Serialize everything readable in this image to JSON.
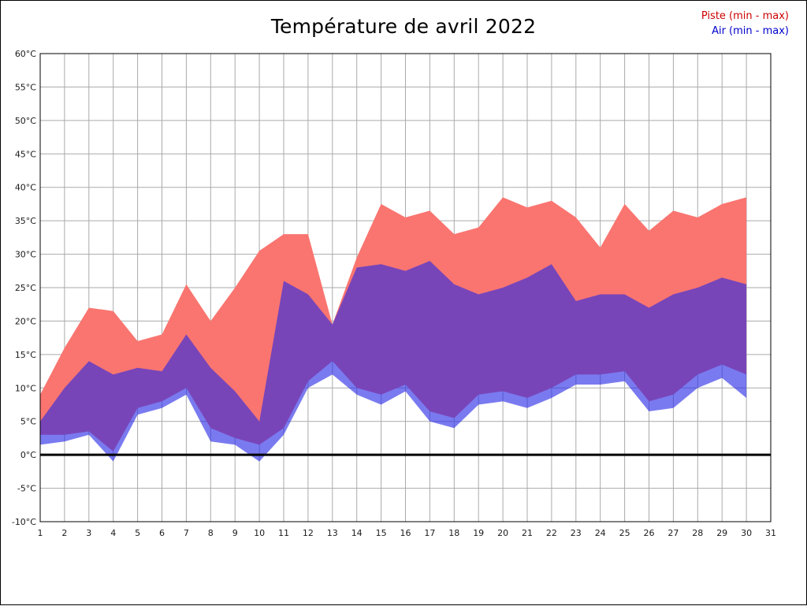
{
  "legend": {
    "piste": "Piste (min - max)",
    "air": "Air (min - max)"
  },
  "colors": {
    "piste_fill": "#fa7570",
    "air_fill": "#2828e6",
    "air_opacity": 0.62,
    "grid": "#aaaaaa",
    "zero_line": "#000000",
    "border": "#000000",
    "tick_text": "#1a1a1a",
    "title_text": "#000000",
    "legend_piste_text": "#cc0000",
    "legend_air_text": "#0000cc"
  },
  "chart_data": {
    "type": "area",
    "title": "Température de avril 2022",
    "xlabel": "",
    "ylabel": "",
    "xlim": [
      1,
      31
    ],
    "ylim": [
      -10,
      60
    ],
    "y_unit": "°C",
    "grid": true,
    "legend_position": "top-right",
    "x_ticks": [
      1,
      2,
      3,
      4,
      5,
      6,
      7,
      8,
      9,
      10,
      11,
      12,
      13,
      14,
      15,
      16,
      17,
      18,
      19,
      20,
      21,
      22,
      23,
      24,
      25,
      26,
      27,
      28,
      29,
      30,
      31
    ],
    "y_ticks": [
      -10,
      -5,
      0,
      5,
      10,
      15,
      20,
      25,
      30,
      35,
      40,
      45,
      50,
      55,
      60
    ],
    "days": [
      1,
      2,
      3,
      4,
      5,
      6,
      7,
      8,
      9,
      10,
      11,
      12,
      13,
      14,
      15,
      16,
      17,
      18,
      19,
      20,
      21,
      22,
      23,
      24,
      25,
      26,
      27,
      28,
      29,
      30
    ],
    "series": [
      {
        "name": "piste",
        "label": "Piste (min - max)",
        "min": [
          3,
          3,
          3.5,
          0.5,
          7,
          8,
          10,
          4,
          2.5,
          1.5,
          4,
          11,
          14,
          10,
          9,
          10.5,
          6.5,
          5.5,
          9,
          9.5,
          8.5,
          10,
          12,
          12,
          12.5,
          8,
          9,
          12,
          13.5,
          12
        ],
        "max": [
          9,
          16,
          22,
          21.5,
          17,
          18,
          25.5,
          20,
          25,
          30.5,
          33,
          33,
          19.5,
          29.5,
          37.5,
          35.5,
          36.5,
          33,
          34,
          38.5,
          37,
          38,
          35.5,
          31,
          37.5,
          33.5,
          36.5,
          35.5,
          37.5,
          38.5
        ]
      },
      {
        "name": "air",
        "label": "Air (min - max)",
        "min": [
          1.5,
          2,
          3,
          -1,
          6,
          7,
          9,
          2,
          1.5,
          -1,
          3,
          10,
          12,
          9,
          7.5,
          9.5,
          5,
          4,
          7.5,
          8,
          7,
          8.5,
          10.5,
          10.5,
          11,
          6.5,
          7,
          10,
          11.5,
          8.5
        ],
        "max": [
          5,
          10,
          14,
          12,
          13,
          12.5,
          18,
          13,
          9.5,
          5,
          26,
          24,
          19.5,
          28,
          28.5,
          27.5,
          29,
          25.5,
          24,
          25,
          26.5,
          28.5,
          23,
          24,
          24,
          22,
          24,
          25,
          26.5,
          25.5
        ]
      }
    ]
  }
}
